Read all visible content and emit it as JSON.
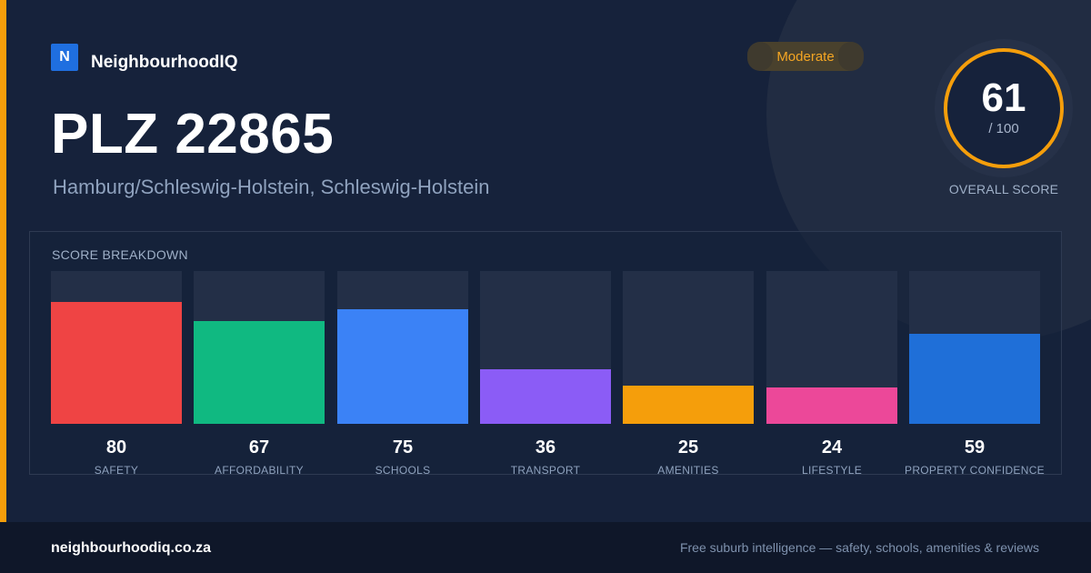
{
  "brand": {
    "logo_letter": "N",
    "name": "NeighbourhoodIQ"
  },
  "header": {
    "title": "PLZ 22865",
    "subtitle": "Hamburg/Schleswig-Holstein, Schleswig-Holstein"
  },
  "badge": {
    "label": "Moderate",
    "color": "#f5a623"
  },
  "overall": {
    "value": "61",
    "max_label": "/ 100",
    "label": "OVERALL SCORE",
    "ring_color": "#f59e0b"
  },
  "breakdown": {
    "title": "SCORE BREAKDOWN"
  },
  "chart_data": {
    "type": "bar",
    "title": "SCORE BREAKDOWN",
    "categories": [
      "SAFETY",
      "AFFORDABILITY",
      "SCHOOLS",
      "TRANSPORT",
      "AMENITIES",
      "LIFESTYLE",
      "PROPERTY CONFIDENCE"
    ],
    "values": [
      80,
      67,
      75,
      36,
      25,
      24,
      59
    ],
    "colors": [
      "#ef4444",
      "#10b981",
      "#3b82f6",
      "#8b5cf6",
      "#f59e0b",
      "#ec4899",
      "#1f6fd8"
    ],
    "ylim": [
      0,
      100
    ],
    "grid": false,
    "legend": "none"
  },
  "footer": {
    "url": "neighbourhoodiq.co.za",
    "tagline": "Free suburb intelligence — safety, schools, amenities & reviews"
  }
}
